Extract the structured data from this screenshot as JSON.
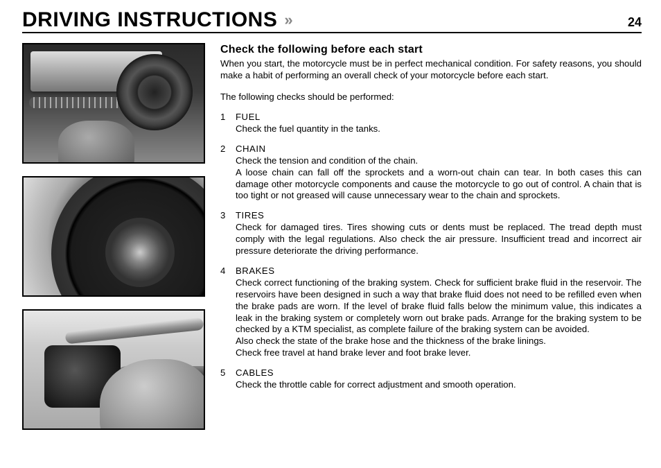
{
  "header": {
    "title": "DRIVING INSTRUCTIONS",
    "chevrons": "»",
    "page": "24"
  },
  "subheading": "Check the following before each start",
  "intro": "When you start, the motorcycle must be in perfect mechanical condition. For safety reasons, you should make a habit of performing an overall check of your motorcycle before each start.",
  "lead": "The following checks should be performed:",
  "checks": [
    {
      "num": "1",
      "label": "FUEL",
      "desc": "Check the fuel quantity in the tanks."
    },
    {
      "num": "2",
      "label": "CHAIN",
      "desc": "Check the tension and condition of the chain.\nA loose chain can fall off the sprockets and a worn-out chain can tear. In both cases this can damage other motorcycle components and cause the motorcycle to go out of control. A chain that is too tight or not greased will cause unnecessary wear to the chain and sprockets."
    },
    {
      "num": "3",
      "label": "TIRES",
      "desc": "Check for damaged tires. Tires showing cuts or dents must be replaced. The tread depth must comply with the legal regulations. Also check the air pressure. Insufficient tread and incorrect air pressure deteriorate the driving performance."
    },
    {
      "num": "4",
      "label": "BRAKES",
      "desc": "Check correct functioning of the braking system. Check for sufficient brake fluid in the reservoir. The reservoirs have been designed in such a way that brake fluid does not need to be refilled even when the brake pads are worn. If the level of brake fluid falls below the minimum value, this indicates a leak in the braking system or completely worn out brake pads. Arrange for the braking system to be checked by a KTM specialist, as complete failure of the braking system can be avoided.\nAlso check the state of the brake hose and the thickness of the brake linings.\nCheck free travel at hand brake lever and foot brake lever."
    },
    {
      "num": "5",
      "label": "CABLES",
      "desc": "Check the throttle cable for correct adjustment and smooth operation."
    }
  ],
  "images": [
    {
      "name": "photo-chain-check"
    },
    {
      "name": "photo-tire-check"
    },
    {
      "name": "photo-handlebar-controls"
    }
  ]
}
